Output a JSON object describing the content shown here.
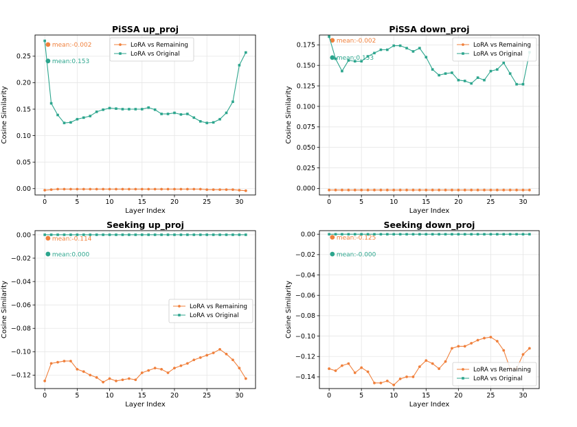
{
  "figure": {
    "background": "#ffffff"
  },
  "colors": {
    "remaining": "#f0803c",
    "original": "#2ca58d",
    "grid": "#e6e6e6",
    "axis": "#000000"
  },
  "legend_labels": {
    "remaining": "LoRA vs Remaining",
    "original": "LoRA vs Original"
  },
  "chart_data": [
    {
      "type": "line",
      "title": "PiSSA up_proj",
      "xlabel": "Layer Index",
      "ylabel": "Cosine Similarity",
      "xlim": [
        -1.5,
        32.5
      ],
      "ylim": [
        -0.012,
        0.29
      ],
      "xticks": [
        0,
        5,
        10,
        15,
        20,
        25,
        30
      ],
      "yticks": [
        0.0,
        0.05,
        0.1,
        0.15,
        0.2,
        0.25
      ],
      "ytick_labels": [
        "0.00",
        "0.05",
        "0.10",
        "0.15",
        "0.20",
        "0.25"
      ],
      "legend_position": "top-center",
      "x": [
        0,
        1,
        2,
        3,
        4,
        5,
        6,
        7,
        8,
        9,
        10,
        11,
        12,
        13,
        14,
        15,
        16,
        17,
        18,
        19,
        20,
        21,
        22,
        23,
        24,
        25,
        26,
        27,
        28,
        29,
        30,
        31
      ],
      "series": [
        {
          "name": "LoRA vs Remaining",
          "key": "remaining",
          "marker": "circle",
          "values": [
            -0.003,
            -0.002,
            -0.001,
            -0.001,
            -0.001,
            -0.001,
            -0.001,
            -0.001,
            -0.001,
            -0.001,
            -0.001,
            -0.001,
            -0.001,
            -0.001,
            -0.001,
            -0.001,
            -0.001,
            -0.001,
            -0.001,
            -0.001,
            -0.001,
            -0.001,
            -0.001,
            -0.001,
            -0.001,
            -0.002,
            -0.002,
            -0.002,
            -0.002,
            -0.002,
            -0.003,
            -0.004
          ],
          "mean_label": "mean:-0.002",
          "mean_value": 0.272
        },
        {
          "name": "LoRA vs Original",
          "key": "original",
          "marker": "square",
          "values": [
            0.279,
            0.161,
            0.139,
            0.124,
            0.125,
            0.131,
            0.134,
            0.137,
            0.145,
            0.149,
            0.152,
            0.151,
            0.15,
            0.15,
            0.15,
            0.15,
            0.153,
            0.149,
            0.141,
            0.141,
            0.143,
            0.14,
            0.141,
            0.134,
            0.127,
            0.124,
            0.125,
            0.131,
            0.143,
            0.164,
            0.233,
            0.257
          ],
          "mean_label": "mean:0.153",
          "mean_value": 0.241
        }
      ]
    },
    {
      "type": "line",
      "title": "PiSSA down_proj",
      "xlabel": "Layer Index",
      "ylabel": "Cosine Similarity",
      "xlim": [
        -1.5,
        32.5
      ],
      "ylim": [
        -0.008,
        0.187
      ],
      "xticks": [
        0,
        5,
        10,
        15,
        20,
        25,
        30
      ],
      "yticks": [
        0.0,
        0.025,
        0.05,
        0.075,
        0.1,
        0.125,
        0.15,
        0.175
      ],
      "ytick_labels": [
        "0.000",
        "0.025",
        "0.050",
        "0.075",
        "0.100",
        "0.125",
        "0.150",
        "0.175"
      ],
      "legend_position": "top-right",
      "x": [
        0,
        1,
        2,
        3,
        4,
        5,
        6,
        7,
        8,
        9,
        10,
        11,
        12,
        13,
        14,
        15,
        16,
        17,
        18,
        19,
        20,
        21,
        22,
        23,
        24,
        25,
        26,
        27,
        28,
        29,
        30,
        31
      ],
      "series": [
        {
          "name": "LoRA vs Remaining",
          "key": "remaining",
          "marker": "circle",
          "values": [
            -0.002,
            -0.002,
            -0.002,
            -0.002,
            -0.002,
            -0.002,
            -0.002,
            -0.002,
            -0.002,
            -0.002,
            -0.002,
            -0.002,
            -0.002,
            -0.002,
            -0.002,
            -0.002,
            -0.002,
            -0.002,
            -0.002,
            -0.002,
            -0.002,
            -0.002,
            -0.002,
            -0.002,
            -0.002,
            -0.002,
            -0.002,
            -0.002,
            -0.002,
            -0.002,
            -0.002,
            -0.002
          ],
          "mean_label": "mean:-0.002",
          "mean_value": 0.1805
        },
        {
          "name": "LoRA vs Original",
          "key": "original",
          "marker": "square",
          "values": [
            0.185,
            0.158,
            0.143,
            0.156,
            0.155,
            0.155,
            0.161,
            0.165,
            0.169,
            0.169,
            0.174,
            0.174,
            0.171,
            0.167,
            0.171,
            0.16,
            0.145,
            0.138,
            0.14,
            0.141,
            0.132,
            0.131,
            0.128,
            0.135,
            0.132,
            0.143,
            0.145,
            0.153,
            0.14,
            0.127,
            0.127,
            0.166
          ],
          "mean_label": "mean:0.153",
          "mean_value": 0.1595
        }
      ]
    },
    {
      "type": "line",
      "title": "Seeking up_proj",
      "xlabel": "Layer Index",
      "ylabel": "Cosine Similarity",
      "xlim": [
        -1.5,
        32.5
      ],
      "ylim": [
        -0.1315,
        0.0035
      ],
      "xticks": [
        0,
        5,
        10,
        15,
        20,
        25,
        30
      ],
      "yticks": [
        -0.12,
        -0.1,
        -0.08,
        -0.06,
        -0.04,
        -0.02,
        0.0
      ],
      "ytick_labels": [
        "−0.12",
        "−0.10",
        "−0.08",
        "−0.06",
        "−0.04",
        "−0.02",
        "0.00"
      ],
      "legend_position": "center-right",
      "x": [
        0,
        1,
        2,
        3,
        4,
        5,
        6,
        7,
        8,
        9,
        10,
        11,
        12,
        13,
        14,
        15,
        16,
        17,
        18,
        19,
        20,
        21,
        22,
        23,
        24,
        25,
        26,
        27,
        28,
        29,
        30,
        31
      ],
      "series": [
        {
          "name": "LoRA vs Remaining",
          "key": "remaining",
          "marker": "circle",
          "values": [
            -0.125,
            -0.11,
            -0.109,
            -0.108,
            -0.108,
            -0.115,
            -0.117,
            -0.12,
            -0.122,
            -0.126,
            -0.123,
            -0.125,
            -0.124,
            -0.123,
            -0.124,
            -0.118,
            -0.116,
            -0.114,
            -0.115,
            -0.118,
            -0.114,
            -0.112,
            -0.11,
            -0.107,
            -0.105,
            -0.103,
            -0.101,
            -0.098,
            -0.102,
            -0.107,
            -0.114,
            -0.123
          ],
          "mean_label": "mean:-0.114",
          "mean_value": -0.003
        },
        {
          "name": "LoRA vs Original",
          "key": "original",
          "marker": "square",
          "values": [
            0.0,
            0.0,
            0.0,
            0.0,
            0.0,
            0.0,
            0.0,
            0.0,
            0.0,
            0.0,
            0.0,
            0.0,
            0.0,
            0.0,
            0.0,
            0.0,
            0.0,
            0.0,
            0.0,
            0.0,
            0.0,
            0.0,
            0.0,
            0.0,
            0.0,
            0.0,
            0.0,
            0.0,
            0.0,
            0.0,
            0.0,
            0.0
          ],
          "mean_label": "mean:0.000",
          "mean_value": -0.0165
        }
      ]
    },
    {
      "type": "line",
      "title": "Seeking down_proj",
      "xlabel": "Layer Index",
      "ylabel": "Cosine Similarity",
      "xlim": [
        -1.5,
        32.5
      ],
      "ylim": [
        -0.1515,
        0.0035
      ],
      "xticks": [
        0,
        5,
        10,
        15,
        20,
        25,
        30
      ],
      "yticks": [
        -0.14,
        -0.12,
        -0.1,
        -0.08,
        -0.06,
        -0.04,
        -0.02,
        0.0
      ],
      "ytick_labels": [
        "−0.14",
        "−0.12",
        "−0.10",
        "−0.08",
        "−0.06",
        "−0.04",
        "−0.02",
        "0.00"
      ],
      "legend_position": "bottom-right",
      "x": [
        0,
        1,
        2,
        3,
        4,
        5,
        6,
        7,
        8,
        9,
        10,
        11,
        12,
        13,
        14,
        15,
        16,
        17,
        18,
        19,
        20,
        21,
        22,
        23,
        24,
        25,
        26,
        27,
        28,
        29,
        30,
        31
      ],
      "series": [
        {
          "name": "LoRA vs Remaining",
          "key": "remaining",
          "marker": "circle",
          "values": [
            -0.132,
            -0.134,
            -0.129,
            -0.127,
            -0.136,
            -0.131,
            -0.135,
            -0.146,
            -0.146,
            -0.144,
            -0.148,
            -0.142,
            -0.14,
            -0.14,
            -0.13,
            -0.124,
            -0.127,
            -0.132,
            -0.125,
            -0.112,
            -0.11,
            -0.11,
            -0.107,
            -0.104,
            -0.102,
            -0.101,
            -0.105,
            -0.114,
            -0.132,
            -0.132,
            -0.118,
            -0.112
          ],
          "mean_label": "mean:-0.125",
          "mean_value": -0.003
        },
        {
          "name": "LoRA vs Original",
          "key": "original",
          "marker": "square",
          "values": [
            0.0,
            0.0,
            0.0,
            0.0,
            0.0,
            0.0,
            0.0,
            0.0,
            0.0,
            0.0,
            0.0,
            0.0,
            0.0,
            0.0,
            0.0,
            0.0,
            0.0,
            0.0,
            0.0,
            0.0,
            0.0,
            0.0,
            0.0,
            0.0,
            0.0,
            0.0,
            0.0,
            0.0,
            0.0,
            0.0,
            0.0,
            0.0
          ],
          "mean_label": "mean:-0.000",
          "mean_value": -0.0195
        }
      ]
    }
  ]
}
